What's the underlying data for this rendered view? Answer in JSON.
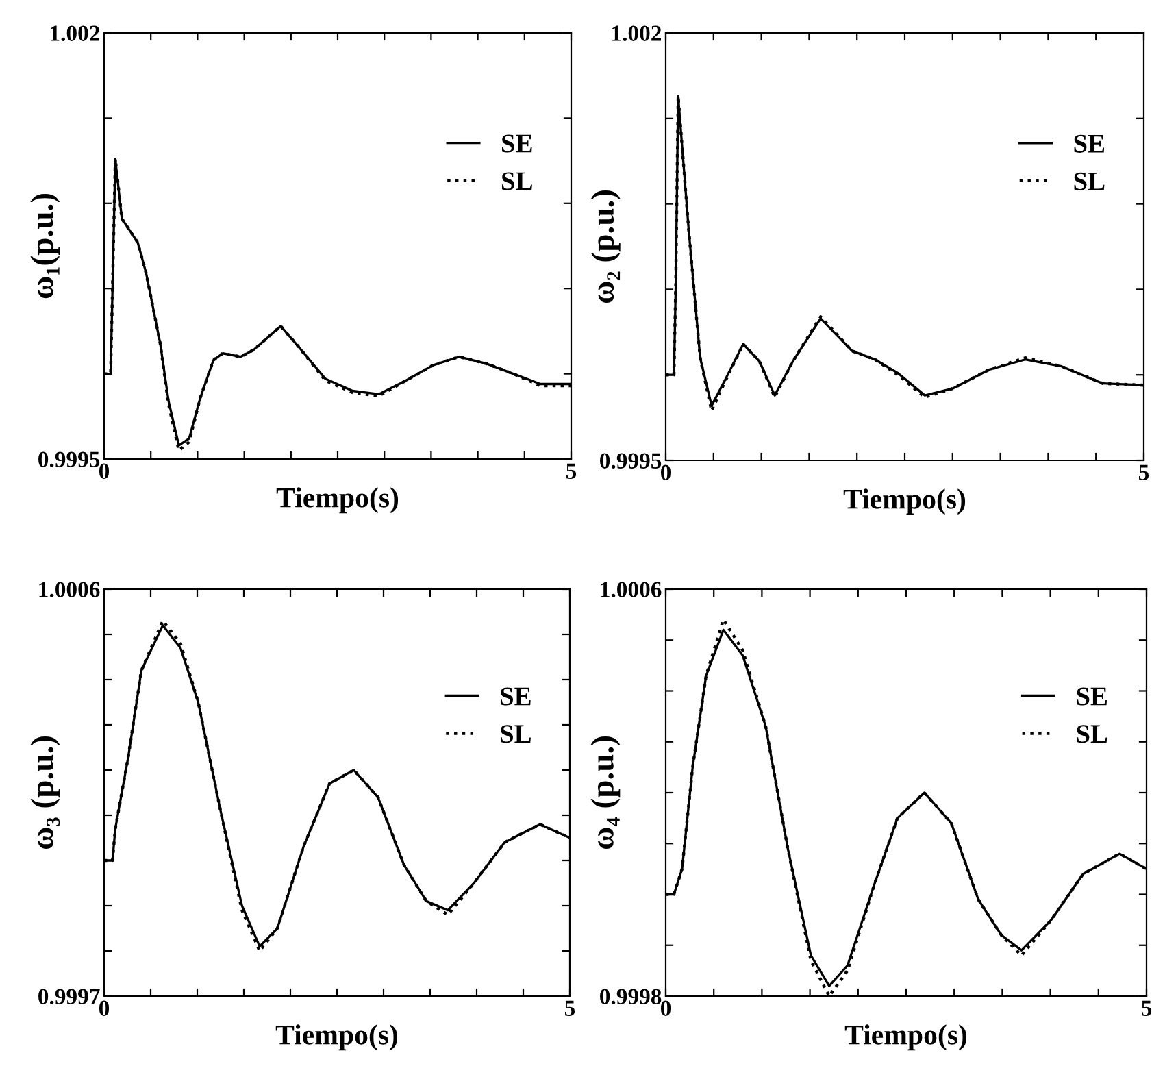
{
  "chart_data": [
    {
      "type": "line",
      "xlabel": "Tiempo(s)",
      "ylabel": "ω₁(p.u.)",
      "xlim": [
        0,
        5
      ],
      "ylim": [
        0.9995,
        1.002
      ],
      "xticks": [
        0,
        {
          "value": 0.5,
          "label": null
        },
        {
          "value": 1,
          "label": null
        },
        {
          "value": 1.5,
          "label": null
        },
        {
          "value": 2,
          "label": null
        },
        {
          "value": 2.5,
          "label": null
        },
        {
          "value": 3,
          "label": null
        },
        {
          "value": 3.5,
          "label": null
        },
        {
          "value": 4,
          "label": null
        },
        {
          "value": 4.5,
          "label": null
        },
        5
      ],
      "yticks": [
        0.9995,
        {
          "value": 1.0,
          "label": null
        },
        {
          "value": 1.0005,
          "label": null
        },
        {
          "value": 1.001,
          "label": null
        },
        {
          "value": 1.0015,
          "label": null
        },
        1.002
      ],
      "legend": "top right",
      "grid": false,
      "x": [
        0,
        0.07,
        0.09,
        0.12,
        0.19,
        0.36,
        0.45,
        0.6,
        0.69,
        0.8,
        0.91,
        1.03,
        1.17,
        1.27,
        1.46,
        1.6,
        1.89,
        2.08,
        2.37,
        2.66,
        2.94,
        3.23,
        3.52,
        3.8,
        4.09,
        4.38,
        4.67,
        5
      ],
      "series": [
        {
          "name": "SE",
          "color": "#000000",
          "line_style": "solid",
          "values": [
            1.0,
            1.0,
            1.0005,
            1.00126,
            1.00091,
            1.00077,
            1.00059,
            1.00018,
            0.99984,
            0.99958,
            0.99962,
            0.99986,
            1.00008,
            1.00012,
            1.0001,
            1.00014,
            1.00028,
            1.00016,
            0.99997,
            0.9999,
            0.99988,
            0.99996,
            1.00005,
            1.0001,
            1.00006,
            1.0,
            0.99994,
            0.99994
          ]
        },
        {
          "name": "SL",
          "color": "#000000",
          "line_style": "dotted",
          "values": [
            1.0,
            1.0,
            1.0005,
            1.00126,
            1.00091,
            1.00077,
            1.00059,
            1.00018,
            0.99982,
            0.99955,
            0.9996,
            0.99986,
            1.00008,
            1.00012,
            1.0001,
            1.00014,
            1.00028,
            1.00016,
            0.99996,
            0.99989,
            0.99987,
            0.99996,
            1.00005,
            1.0001,
            1.00006,
            1.0,
            0.99993,
            0.99993
          ]
        }
      ]
    },
    {
      "type": "line",
      "xlabel": "Tiempo(s)",
      "ylabel": "ω₂ (p.u.)",
      "xlim": [
        0,
        5
      ],
      "ylim": [
        0.9995,
        1.002
      ],
      "xticks": [
        0,
        {
          "value": 0.5,
          "label": null
        },
        {
          "value": 1,
          "label": null
        },
        {
          "value": 1.5,
          "label": null
        },
        {
          "value": 2,
          "label": null
        },
        {
          "value": 2.5,
          "label": null
        },
        {
          "value": 3,
          "label": null
        },
        {
          "value": 3.5,
          "label": null
        },
        {
          "value": 4,
          "label": null
        },
        {
          "value": 4.5,
          "label": null
        },
        5
      ],
      "yticks": [
        0.9995,
        {
          "value": 1.0,
          "label": null
        },
        {
          "value": 1.0005,
          "label": null
        },
        {
          "value": 1.001,
          "label": null
        },
        {
          "value": 1.0015,
          "label": null
        },
        1.002
      ],
      "legend": "top right",
      "grid": false,
      "x": [
        0,
        0.086,
        0.105,
        0.13,
        0.24,
        0.36,
        0.48,
        0.62,
        0.81,
        0.98,
        1.14,
        1.33,
        1.62,
        1.95,
        2.19,
        2.43,
        2.71,
        3.0,
        3.38,
        3.76,
        4.14,
        4.57,
        5.0
      ],
      "series": [
        {
          "name": "SE",
          "color": "#000000",
          "line_style": "solid",
          "values": [
            1.0,
            1.0,
            1.00053,
            1.00163,
            1.00085,
            1.0001,
            0.99982,
            0.99997,
            1.00018,
            1.00008,
            0.99988,
            1.00008,
            1.00033,
            1.00014,
            1.00009,
            1.00001,
            0.99988,
            0.99992,
            1.00003,
            1.00009,
            1.00005,
            0.99995,
            0.99994
          ]
        },
        {
          "name": "SL",
          "color": "#000000",
          "line_style": "dotted",
          "values": [
            1.0,
            1.0,
            1.00053,
            1.00163,
            1.00085,
            1.0001,
            0.99979,
            0.99996,
            1.00018,
            1.00008,
            0.99987,
            1.00008,
            1.00034,
            1.00014,
            1.00009,
            1.0,
            0.99987,
            0.99992,
            1.00003,
            1.0001,
            1.00005,
            0.99995,
            0.99994
          ]
        }
      ]
    },
    {
      "type": "line",
      "xlabel": "Tiempo(s)",
      "ylabel": "ω₃ (p.u.)",
      "xlim": [
        0,
        5
      ],
      "ylim": [
        0.9997,
        1.0006
      ],
      "xticks": [
        0,
        {
          "value": 0.5,
          "label": null
        },
        {
          "value": 1,
          "label": null
        },
        {
          "value": 1.5,
          "label": null
        },
        {
          "value": 2,
          "label": null
        },
        {
          "value": 2.5,
          "label": null
        },
        {
          "value": 3,
          "label": null
        },
        {
          "value": 3.5,
          "label": null
        },
        {
          "value": 4,
          "label": null
        },
        {
          "value": 4.5,
          "label": null
        },
        5
      ],
      "yticks": [
        0.9997,
        {
          "value": 0.9998,
          "label": null
        },
        {
          "value": 0.9999,
          "label": null
        },
        {
          "value": 1.0,
          "label": null
        },
        {
          "value": 1.0001,
          "label": null
        },
        {
          "value": 1.0002,
          "label": null
        },
        {
          "value": 1.0003,
          "label": null
        },
        {
          "value": 1.0004,
          "label": null
        },
        {
          "value": 1.0005,
          "label": null
        },
        1.0006
      ],
      "legend": "top right",
      "grid": false,
      "x": [
        0,
        0.09,
        0.12,
        0.26,
        0.4,
        0.63,
        0.82,
        1.01,
        1.25,
        1.48,
        1.67,
        1.86,
        2.14,
        2.42,
        2.68,
        2.94,
        3.22,
        3.46,
        3.69,
        3.97,
        4.3,
        4.68,
        5.0
      ],
      "series": [
        {
          "name": "SE",
          "color": "#000000",
          "line_style": "solid",
          "values": [
            1.0,
            1.0,
            1.00007,
            1.00023,
            1.00042,
            1.00052,
            1.00047,
            1.00035,
            1.00011,
            0.9999,
            0.99981,
            0.99985,
            1.00003,
            1.00017,
            1.0002,
            1.00014,
            0.99999,
            0.99991,
            0.99989,
            0.99995,
            1.00004,
            1.00008,
            1.00005
          ]
        },
        {
          "name": "SL",
          "color": "#000000",
          "line_style": "dotted",
          "values": [
            1.0,
            1.0,
            1.00007,
            1.00023,
            1.00042,
            1.00053,
            1.00048,
            1.00035,
            1.00011,
            0.99989,
            0.9998,
            0.99985,
            1.00003,
            1.00017,
            1.0002,
            1.00014,
            0.99999,
            0.99991,
            0.99988,
            0.99995,
            1.00004,
            1.00008,
            1.00005
          ]
        }
      ]
    },
    {
      "type": "line",
      "xlabel": "Tiempo(s)",
      "ylabel": "ω₄ (p.u.)",
      "xlim": [
        0,
        5
      ],
      "ylim": [
        0.9998,
        1.0006
      ],
      "xticks": [
        0,
        {
          "value": 0.5,
          "label": null
        },
        {
          "value": 1,
          "label": null
        },
        {
          "value": 1.5,
          "label": null
        },
        {
          "value": 2,
          "label": null
        },
        {
          "value": 2.5,
          "label": null
        },
        {
          "value": 3,
          "label": null
        },
        {
          "value": 3.5,
          "label": null
        },
        {
          "value": 4,
          "label": null
        },
        {
          "value": 4.5,
          "label": null
        },
        5
      ],
      "yticks": [
        0.9998,
        {
          "value": 0.9999,
          "label": null
        },
        {
          "value": 1.0,
          "label": null
        },
        {
          "value": 1.0001,
          "label": null
        },
        {
          "value": 1.0002,
          "label": null
        },
        {
          "value": 1.0003,
          "label": null
        },
        {
          "value": 1.0004,
          "label": null
        },
        {
          "value": 1.0005,
          "label": null
        },
        1.0006
      ],
      "legend": "top right",
      "grid": false,
      "x": [
        0,
        0.085,
        0.17,
        0.28,
        0.42,
        0.6,
        0.8,
        1.04,
        1.27,
        1.51,
        1.7,
        1.89,
        2.17,
        2.41,
        2.69,
        2.97,
        3.25,
        3.49,
        3.7,
        4.01,
        4.34,
        4.72,
        5.0
      ],
      "series": [
        {
          "name": "SE",
          "color": "#000000",
          "line_style": "solid",
          "values": [
            1.0,
            1.0,
            1.00005,
            1.00025,
            1.00043,
            1.00052,
            1.00047,
            1.00033,
            1.00009,
            0.99988,
            0.99982,
            0.99986,
            1.00002,
            1.00015,
            1.0002,
            1.00014,
            0.99999,
            0.99992,
            0.99989,
            0.99995,
            1.00004,
            1.00008,
            1.00005
          ]
        },
        {
          "name": "SL",
          "color": "#000000",
          "line_style": "dotted",
          "values": [
            1.0,
            1.0,
            1.00005,
            1.00025,
            1.00043,
            1.00054,
            1.00048,
            1.00033,
            1.00009,
            0.99987,
            0.9998,
            0.99985,
            1.00002,
            1.00015,
            1.0002,
            1.00014,
            0.99999,
            0.99992,
            0.99988,
            0.99995,
            1.00004,
            1.00008,
            1.00005
          ]
        }
      ]
    }
  ]
}
